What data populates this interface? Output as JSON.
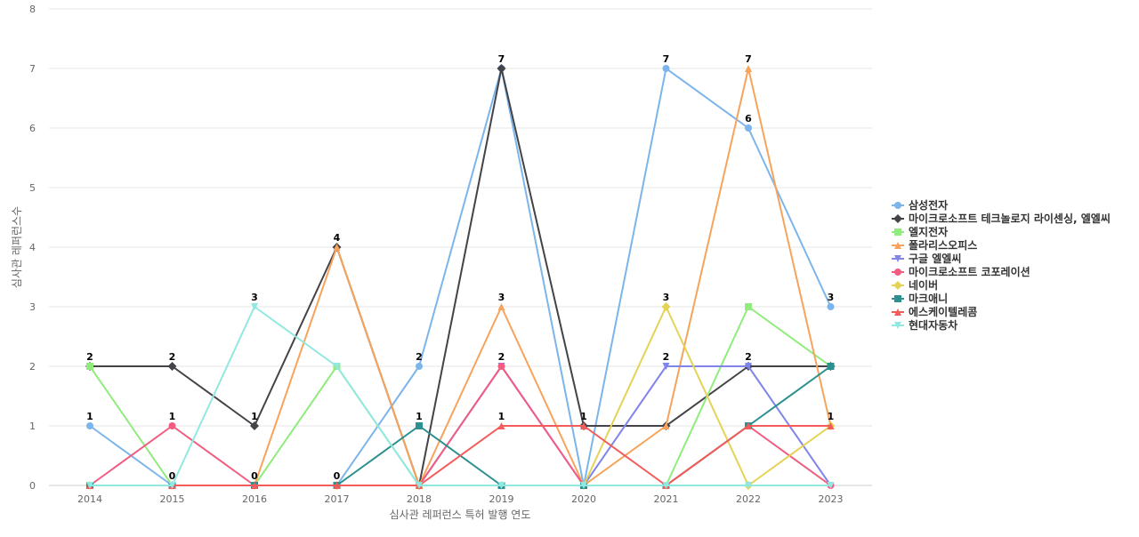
{
  "chart_data": {
    "type": "line",
    "title": "",
    "xlabel": "심사관 레퍼런스 특허 발행 연도",
    "ylabel": "심사관 레퍼런스수",
    "ylim": [
      0,
      8
    ],
    "y_ticks": [
      0,
      1,
      2,
      3,
      4,
      5,
      6,
      7,
      8
    ],
    "categories": [
      "2014",
      "2015",
      "2016",
      "2017",
      "2018",
      "2019",
      "2020",
      "2021",
      "2022",
      "2023"
    ],
    "grid": "horizontal",
    "legend_position": "right",
    "series": [
      {
        "name": "삼성전자",
        "color": "#7cb5ec",
        "marker": "circle",
        "values": [
          1,
          0,
          0,
          0,
          2,
          7,
          0,
          7,
          6,
          3
        ]
      },
      {
        "name": "마이크로소프트 테크놀로지 라이센싱, 엘엘씨",
        "color": "#434348",
        "marker": "diamond",
        "values": [
          2,
          2,
          1,
          4,
          0,
          7,
          1,
          1,
          2,
          2
        ]
      },
      {
        "name": "엘지전자",
        "color": "#90ed7d",
        "marker": "square",
        "values": [
          2,
          0,
          0,
          2,
          0,
          0,
          0,
          0,
          3,
          2
        ]
      },
      {
        "name": "폴라리스오피스",
        "color": "#f7a35c",
        "marker": "triangle",
        "values": [
          0,
          0,
          0,
          4,
          0,
          3,
          0,
          1,
          7,
          1
        ]
      },
      {
        "name": "구글 엘엘씨",
        "color": "#8085e9",
        "marker": "triangle-down",
        "values": [
          0,
          0,
          0,
          0,
          0,
          2,
          0,
          2,
          2,
          0
        ]
      },
      {
        "name": "마이크로소프트 코포레이션",
        "color": "#f15c80",
        "marker": "circle",
        "values": [
          0,
          1,
          0,
          0,
          0,
          2,
          0,
          0,
          1,
          0
        ]
      },
      {
        "name": "네이버",
        "color": "#e4d354",
        "marker": "diamond",
        "values": [
          0,
          0,
          0,
          0,
          0,
          0,
          0,
          3,
          0,
          1
        ]
      },
      {
        "name": "마크애니",
        "color": "#2b908f",
        "marker": "square",
        "values": [
          0,
          0,
          0,
          0,
          1,
          0,
          0,
          0,
          1,
          2
        ]
      },
      {
        "name": "에스케이텔레콤",
        "color": "#f45b5b",
        "marker": "triangle",
        "values": [
          0,
          0,
          0,
          0,
          0,
          1,
          1,
          0,
          1,
          1
        ]
      },
      {
        "name": "현대자동차",
        "color": "#91e8e1",
        "marker": "triangle-down",
        "values": [
          0,
          0,
          3,
          2,
          0,
          0,
          0,
          0,
          0,
          0
        ]
      }
    ],
    "data_labels": [
      {
        "series": 0,
        "points": [
          0,
          1,
          2,
          3,
          4,
          5,
          7,
          8,
          9
        ]
      },
      {
        "series": 1,
        "points": [
          0,
          1,
          2,
          3,
          6
        ]
      },
      {
        "series": 3,
        "points": [
          5,
          8
        ]
      },
      {
        "series": 4,
        "points": [
          7,
          8
        ]
      },
      {
        "series": 5,
        "points": [
          1,
          5
        ]
      },
      {
        "series": 6,
        "points": [
          7
        ]
      },
      {
        "series": 7,
        "points": [
          4
        ]
      },
      {
        "series": 8,
        "points": [
          5,
          9
        ]
      },
      {
        "series": 9,
        "points": [
          2
        ]
      }
    ]
  }
}
